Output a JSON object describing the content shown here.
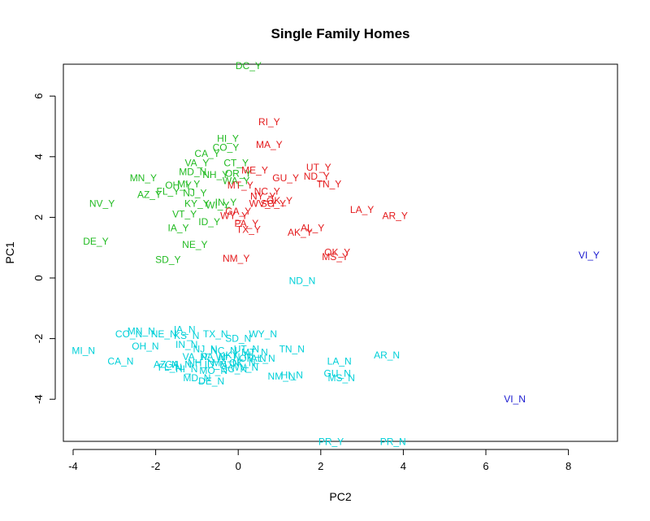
{
  "chart_data": {
    "type": "scatter",
    "title": "Single Family Homes",
    "xlabel": "PC2",
    "ylabel": "PC1",
    "xlim": [
      -4.2,
      9.3
    ],
    "ylim": [
      -5.5,
      7.0
    ],
    "xticks": [
      -4,
      -2,
      0,
      2,
      4,
      6,
      8
    ],
    "yticks": [
      -4,
      -2,
      0,
      2,
      4,
      6
    ],
    "grid": false,
    "colors": {
      "green": "#22bb22",
      "red": "#e41a1c",
      "cyan": "#00d0d8",
      "blue": "#1a1ad0"
    },
    "points": [
      {
        "label": "DC_Y",
        "x": 0.25,
        "y": 7.0,
        "color": "green"
      },
      {
        "label": "HI_Y",
        "x": -0.25,
        "y": 4.6,
        "color": "green"
      },
      {
        "label": "CO_Y",
        "x": -0.3,
        "y": 4.3,
        "color": "green"
      },
      {
        "label": "CA_Y",
        "x": -0.75,
        "y": 4.1,
        "color": "green"
      },
      {
        "label": "CT_Y",
        "x": -0.05,
        "y": 3.8,
        "color": "green"
      },
      {
        "label": "VA_Y",
        "x": -1.0,
        "y": 3.8,
        "color": "green"
      },
      {
        "label": "MD_N",
        "x": -1.1,
        "y": 3.5,
        "color": "green"
      },
      {
        "label": "NH_Y",
        "x": -0.55,
        "y": 3.4,
        "color": "green"
      },
      {
        "label": "OR_Y",
        "x": 0.0,
        "y": 3.45,
        "color": "green"
      },
      {
        "label": "MN_Y",
        "x": -2.3,
        "y": 3.3,
        "color": "green"
      },
      {
        "label": "MI_Y",
        "x": -1.2,
        "y": 3.1,
        "color": "green"
      },
      {
        "label": "OH_Y",
        "x": -1.45,
        "y": 3.05,
        "color": "green"
      },
      {
        "label": "WA_Y",
        "x": -0.05,
        "y": 3.2,
        "color": "green"
      },
      {
        "label": "FL_Y",
        "x": -1.7,
        "y": 2.85,
        "color": "green"
      },
      {
        "label": "NJ_Y",
        "x": -1.05,
        "y": 2.8,
        "color": "green"
      },
      {
        "label": "AZ_Y",
        "x": -2.15,
        "y": 2.75,
        "color": "green"
      },
      {
        "label": "NV_Y",
        "x": -3.3,
        "y": 2.45,
        "color": "green"
      },
      {
        "label": "KY_Y",
        "x": -1.0,
        "y": 2.45,
        "color": "green"
      },
      {
        "label": "WI_Y",
        "x": -0.5,
        "y": 2.4,
        "color": "green"
      },
      {
        "label": "IN_Y",
        "x": -0.3,
        "y": 2.5,
        "color": "green"
      },
      {
        "label": "VT_Y",
        "x": -1.3,
        "y": 2.1,
        "color": "green"
      },
      {
        "label": "ID_Y",
        "x": -0.7,
        "y": 1.85,
        "color": "green"
      },
      {
        "label": "IA_Y",
        "x": -1.45,
        "y": 1.65,
        "color": "green"
      },
      {
        "label": "DE_Y",
        "x": -3.45,
        "y": 1.2,
        "color": "green"
      },
      {
        "label": "NE_Y",
        "x": -1.05,
        "y": 1.1,
        "color": "green"
      },
      {
        "label": "SD_Y",
        "x": -1.7,
        "y": 0.6,
        "color": "green"
      },
      {
        "label": "RI_Y",
        "x": 0.75,
        "y": 5.15,
        "color": "red"
      },
      {
        "label": "MA_Y",
        "x": 0.75,
        "y": 4.4,
        "color": "red"
      },
      {
        "label": "UT_Y",
        "x": 1.95,
        "y": 3.65,
        "color": "red"
      },
      {
        "label": "ME_Y",
        "x": 0.4,
        "y": 3.55,
        "color": "red"
      },
      {
        "label": "ND_Y",
        "x": 1.9,
        "y": 3.35,
        "color": "red"
      },
      {
        "label": "GU_Y",
        "x": 1.15,
        "y": 3.3,
        "color": "red"
      },
      {
        "label": "TN_Y",
        "x": 2.2,
        "y": 3.1,
        "color": "red"
      },
      {
        "label": "MT_Y",
        "x": 0.05,
        "y": 3.05,
        "color": "red"
      },
      {
        "label": "NC_Y",
        "x": 0.7,
        "y": 2.85,
        "color": "red"
      },
      {
        "label": "NY_Y",
        "x": 0.6,
        "y": 2.7,
        "color": "red"
      },
      {
        "label": "WV_Y",
        "x": 0.6,
        "y": 2.45,
        "color": "red"
      },
      {
        "label": "OK_Y",
        "x": 1.0,
        "y": 2.55,
        "color": "red"
      },
      {
        "label": "SC_Y",
        "x": 0.85,
        "y": 2.45,
        "color": "red"
      },
      {
        "label": "LA_Y",
        "x": 3.0,
        "y": 2.25,
        "color": "red"
      },
      {
        "label": "AR_Y",
        "x": 3.8,
        "y": 2.05,
        "color": "red"
      },
      {
        "label": "GA_Y",
        "x": 0.0,
        "y": 2.2,
        "color": "red"
      },
      {
        "label": "WY_Y",
        "x": -0.1,
        "y": 2.05,
        "color": "red"
      },
      {
        "label": "PA_Y",
        "x": 0.2,
        "y": 1.8,
        "color": "red"
      },
      {
        "label": "TX_Y",
        "x": 0.25,
        "y": 1.6,
        "color": "red"
      },
      {
        "label": "AL_Y",
        "x": 1.8,
        "y": 1.65,
        "color": "red"
      },
      {
        "label": "AK_Y",
        "x": 1.5,
        "y": 1.5,
        "color": "red"
      },
      {
        "label": "OK_Y",
        "x": 2.4,
        "y": 0.85,
        "color": "red"
      },
      {
        "label": "MS_Y",
        "x": 2.35,
        "y": 0.7,
        "color": "red"
      },
      {
        "label": "NM_Y",
        "x": -0.05,
        "y": 0.65,
        "color": "red"
      },
      {
        "label": "VI_Y",
        "x": 8.5,
        "y": 0.75,
        "color": "blue"
      },
      {
        "label": "VI_N",
        "x": 6.7,
        "y": -4.0,
        "color": "blue"
      },
      {
        "label": "ND_N",
        "x": 1.55,
        "y": -0.1,
        "color": "cyan"
      },
      {
        "label": "MN_N",
        "x": -2.35,
        "y": -1.75,
        "color": "cyan"
      },
      {
        "label": "CO_N",
        "x": -2.65,
        "y": -1.85,
        "color": "cyan"
      },
      {
        "label": "NE_N",
        "x": -1.8,
        "y": -1.85,
        "color": "cyan"
      },
      {
        "label": "IA_N",
        "x": -1.3,
        "y": -1.7,
        "color": "cyan"
      },
      {
        "label": "KS_N",
        "x": -1.25,
        "y": -1.9,
        "color": "cyan"
      },
      {
        "label": "TX_N",
        "x": -0.55,
        "y": -1.85,
        "color": "cyan"
      },
      {
        "label": "SD_N",
        "x": 0.0,
        "y": -2.0,
        "color": "cyan"
      },
      {
        "label": "WY_N",
        "x": 0.6,
        "y": -1.85,
        "color": "cyan"
      },
      {
        "label": "OH_N",
        "x": -2.25,
        "y": -2.25,
        "color": "cyan"
      },
      {
        "label": "IN_N",
        "x": -1.25,
        "y": -2.2,
        "color": "cyan"
      },
      {
        "label": "NJ_N",
        "x": -0.8,
        "y": -2.35,
        "color": "cyan"
      },
      {
        "label": "NC_N",
        "x": -0.35,
        "y": -2.4,
        "color": "cyan"
      },
      {
        "label": "UT_N",
        "x": 0.2,
        "y": -2.35,
        "color": "cyan"
      },
      {
        "label": "MT_N",
        "x": 0.4,
        "y": -2.45,
        "color": "cyan"
      },
      {
        "label": "TN_N",
        "x": 1.3,
        "y": -2.35,
        "color": "cyan"
      },
      {
        "label": "MI_N",
        "x": -3.75,
        "y": -2.4,
        "color": "cyan"
      },
      {
        "label": "VA_N",
        "x": -1.05,
        "y": -2.6,
        "color": "cyan"
      },
      {
        "label": "PA_N",
        "x": -0.6,
        "y": -2.6,
        "color": "cyan"
      },
      {
        "label": "WI_N",
        "x": -0.25,
        "y": -2.6,
        "color": "cyan"
      },
      {
        "label": "KY_N",
        "x": 0.0,
        "y": -2.55,
        "color": "cyan"
      },
      {
        "label": "OR_N",
        "x": 0.35,
        "y": -2.65,
        "color": "cyan"
      },
      {
        "label": "AL_N",
        "x": 0.6,
        "y": -2.65,
        "color": "cyan"
      },
      {
        "label": "CA_N",
        "x": -2.85,
        "y": -2.75,
        "color": "cyan"
      },
      {
        "label": "AZ_N",
        "x": -1.75,
        "y": -2.85,
        "color": "cyan"
      },
      {
        "label": "GA_N",
        "x": -1.45,
        "y": -2.85,
        "color": "cyan"
      },
      {
        "label": "FL_N",
        "x": -1.65,
        "y": -2.95,
        "color": "cyan"
      },
      {
        "label": "NH_N",
        "x": -0.9,
        "y": -2.8,
        "color": "cyan"
      },
      {
        "label": "ID_N",
        "x": -0.55,
        "y": -2.85,
        "color": "cyan"
      },
      {
        "label": "MA_N",
        "x": -0.3,
        "y": -2.8,
        "color": "cyan"
      },
      {
        "label": "OK_N",
        "x": 0.1,
        "y": -2.8,
        "color": "cyan"
      },
      {
        "label": "WV_N",
        "x": 0.15,
        "y": -2.95,
        "color": "cyan"
      },
      {
        "label": "HI_N",
        "x": -1.25,
        "y": -3.0,
        "color": "cyan"
      },
      {
        "label": "MO_N",
        "x": -0.6,
        "y": -3.05,
        "color": "cyan"
      },
      {
        "label": "SC_N",
        "x": -0.1,
        "y": -3.0,
        "color": "cyan"
      },
      {
        "label": "LA_N",
        "x": 2.45,
        "y": -2.75,
        "color": "cyan"
      },
      {
        "label": "AR_N",
        "x": 3.6,
        "y": -2.55,
        "color": "cyan"
      },
      {
        "label": "GU_N",
        "x": 2.4,
        "y": -3.15,
        "color": "cyan"
      },
      {
        "label": "MS_N",
        "x": 2.5,
        "y": -3.3,
        "color": "cyan"
      },
      {
        "label": "NM_N",
        "x": 1.05,
        "y": -3.25,
        "color": "cyan"
      },
      {
        "label": "HI_N",
        "x": 1.3,
        "y": -3.2,
        "color": "cyan"
      },
      {
        "label": "MD_N",
        "x": -1.0,
        "y": -3.3,
        "color": "cyan"
      },
      {
        "label": "DE_N",
        "x": -0.65,
        "y": -3.4,
        "color": "cyan"
      },
      {
        "label": "PR_Y",
        "x": 2.25,
        "y": -5.4,
        "color": "cyan"
      },
      {
        "label": "PR_N",
        "x": 3.75,
        "y": -5.4,
        "color": "cyan"
      }
    ]
  }
}
